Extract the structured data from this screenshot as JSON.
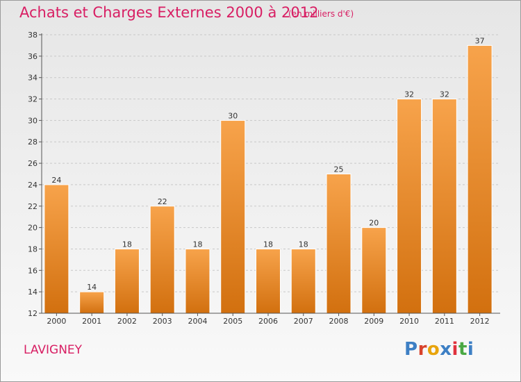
{
  "header": {
    "title": "Achats et Charges Externes 2000 à 2012",
    "subtitle": "(en milliers d'€)"
  },
  "footer": {
    "commune": "LAVIGNEY",
    "logo_text": "Proxiti",
    "logo_colors": [
      "#3d7fc4",
      "#d8422b",
      "#e8a40c",
      "#3d7fc4",
      "#e0323d",
      "#4aa843",
      "#3d7fc4"
    ]
  },
  "colors": {
    "bar_top": "#f7a34b",
    "bar_bottom": "#d2700f",
    "grid": "#c8c8c8",
    "axis": "#555555",
    "title": "#d81e63"
  },
  "chart_data": {
    "type": "bar",
    "categories": [
      "2000",
      "2001",
      "2002",
      "2003",
      "2004",
      "2005",
      "2006",
      "2007",
      "2008",
      "2009",
      "2010",
      "2011",
      "2012"
    ],
    "values": [
      24,
      14,
      18,
      22,
      18,
      30,
      18,
      18,
      25,
      20,
      32,
      32,
      37
    ],
    "data_labels": [
      "24",
      "14",
      "18",
      "22",
      "18",
      "30",
      "18",
      "18",
      "25",
      "20",
      "32",
      "32",
      "37"
    ],
    "ylim": [
      12,
      38
    ],
    "yticks": [
      12,
      14,
      16,
      18,
      20,
      22,
      24,
      26,
      28,
      30,
      32,
      34,
      36,
      38
    ],
    "grid": "horizontal dashed"
  }
}
